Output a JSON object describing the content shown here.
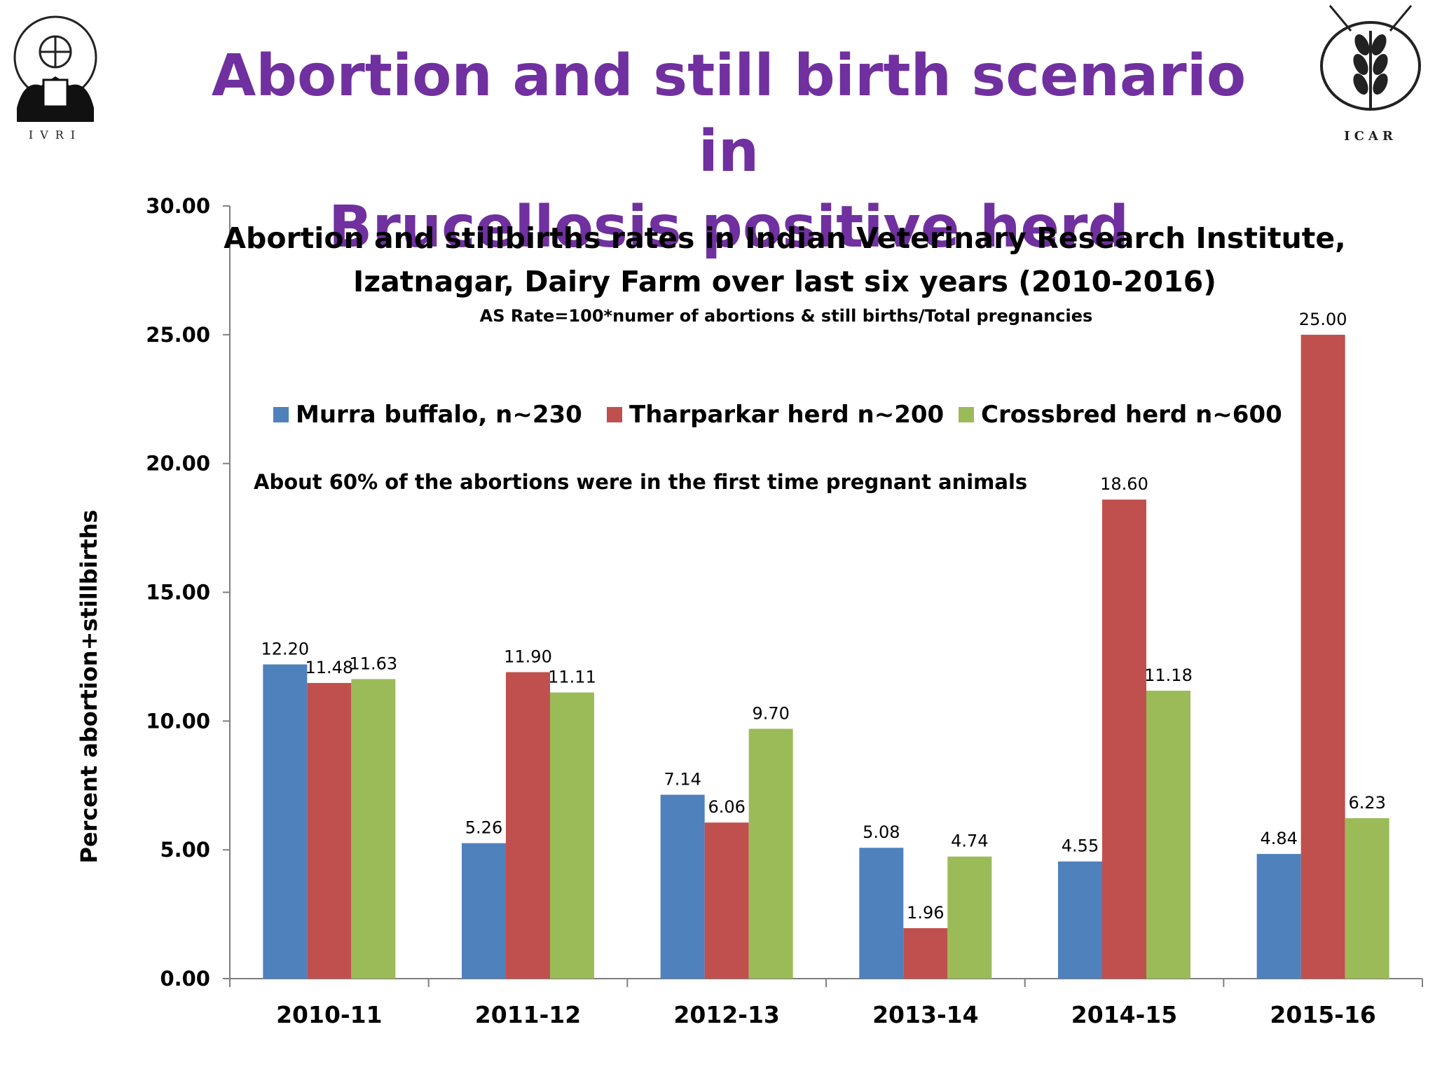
{
  "slide": {
    "title_line1": "Abortion and still birth scenario in",
    "title_line2": "Brucellosis positive herd",
    "logo_left_text": "IVRI",
    "logo_right_text": "ICAR"
  },
  "colors": {
    "title": "#7030a0",
    "series": [
      "#4f81bd",
      "#c0504d",
      "#9bbb59"
    ]
  },
  "chart_data": {
    "type": "bar",
    "title_line1": "Abortion and stillbirths rates in Indian Veterinary Research Institute,",
    "title_line2": "Izatnagar, Dairy Farm over last six years (2010-2016)",
    "subtitle": "AS Rate=100*numer of abortions & still births/Total pregnancies",
    "annotation": "About 60% of the abortions were in the first time pregnant animals",
    "xlabel": "",
    "ylabel": "Percent abortion+stillbirths",
    "ylim": [
      0,
      30
    ],
    "yticks": [
      "0.00",
      "5.00",
      "10.00",
      "15.00",
      "20.00",
      "25.00",
      "30.00"
    ],
    "categories": [
      "2010-11",
      "2011-12",
      "2012-13",
      "2013-14",
      "2014-15",
      "2015-16"
    ],
    "legend_position": "top",
    "grid": false,
    "series": [
      {
        "name": "Murra buffalo, n~230",
        "values": [
          12.2,
          5.26,
          7.14,
          5.08,
          4.55,
          4.84
        ],
        "labels": [
          "12.20",
          "5.26",
          "7.14",
          "5.08",
          "4.55",
          "4.84"
        ]
      },
      {
        "name": "Tharparkar herd n~200",
        "values": [
          11.48,
          11.9,
          6.06,
          1.96,
          18.6,
          25.0
        ],
        "labels": [
          "11.48",
          "11.90",
          "6.06",
          "1.96",
          "18.60",
          "25.00"
        ]
      },
      {
        "name": "Crossbred herd n~600",
        "values": [
          11.63,
          11.11,
          9.7,
          4.74,
          11.18,
          6.23
        ],
        "labels": [
          "11.63",
          "11.11",
          "9.70",
          "4.74",
          "11.18",
          "6.23"
        ]
      }
    ]
  }
}
